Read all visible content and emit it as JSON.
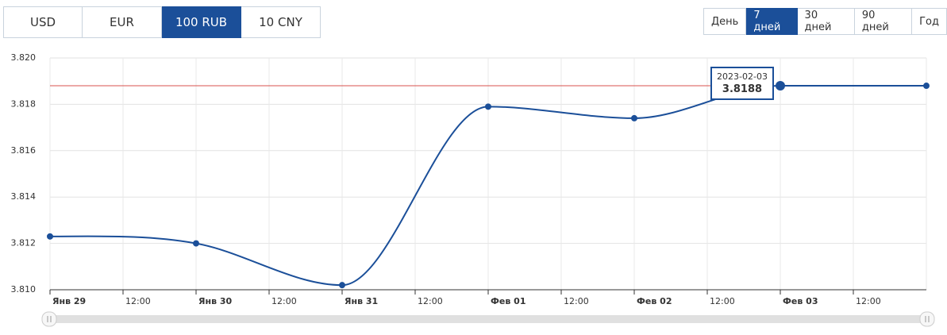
{
  "currency_buttons": {
    "options": [
      "USD",
      "EUR",
      "100 RUB",
      "10 CNY"
    ],
    "selected": 2
  },
  "range_buttons": {
    "options": [
      "День",
      "7 дней",
      "30 дней",
      "90 дней",
      "Год"
    ],
    "selected": 1
  },
  "chart_data": {
    "type": "line",
    "x": [
      0,
      1,
      2,
      3,
      4,
      5,
      6
    ],
    "xlim": [
      0,
      6
    ],
    "xticks": [
      {
        "value": 0,
        "label": "Янв 29"
      },
      {
        "value": 0.5,
        "label": "12:00"
      },
      {
        "value": 1,
        "label": "Янв 30"
      },
      {
        "value": 1.5,
        "label": "12:00"
      },
      {
        "value": 2,
        "label": "Янв 31"
      },
      {
        "value": 2.5,
        "label": "12:00"
      },
      {
        "value": 3,
        "label": "Фев 01"
      },
      {
        "value": 3.5,
        "label": "12:00"
      },
      {
        "value": 4,
        "label": "Фев 02"
      },
      {
        "value": 4.5,
        "label": "12:00"
      },
      {
        "value": 5,
        "label": "Фев 03"
      },
      {
        "value": 5.5,
        "label": "12:00"
      }
    ],
    "ylim": [
      3.81,
      3.82
    ],
    "yticks": [
      {
        "value": 3.81,
        "label": "3.810"
      },
      {
        "value": 3.812,
        "label": "3.812"
      },
      {
        "value": 3.814,
        "label": "3.814"
      },
      {
        "value": 3.816,
        "label": "3.816"
      },
      {
        "value": 3.818,
        "label": "3.818"
      },
      {
        "value": 3.82,
        "label": "3.820"
      }
    ],
    "series": [
      {
        "color": "#1b4f99",
        "values": [
          3.8123,
          3.812,
          3.8102,
          3.8179,
          3.8174,
          3.8188,
          3.8188
        ]
      }
    ],
    "reference_line": {
      "value": 3.8188,
      "color": "#d9534f"
    },
    "tooltip": {
      "x_label": "2023-02-03",
      "value": 3.8188
    },
    "grid": true
  }
}
